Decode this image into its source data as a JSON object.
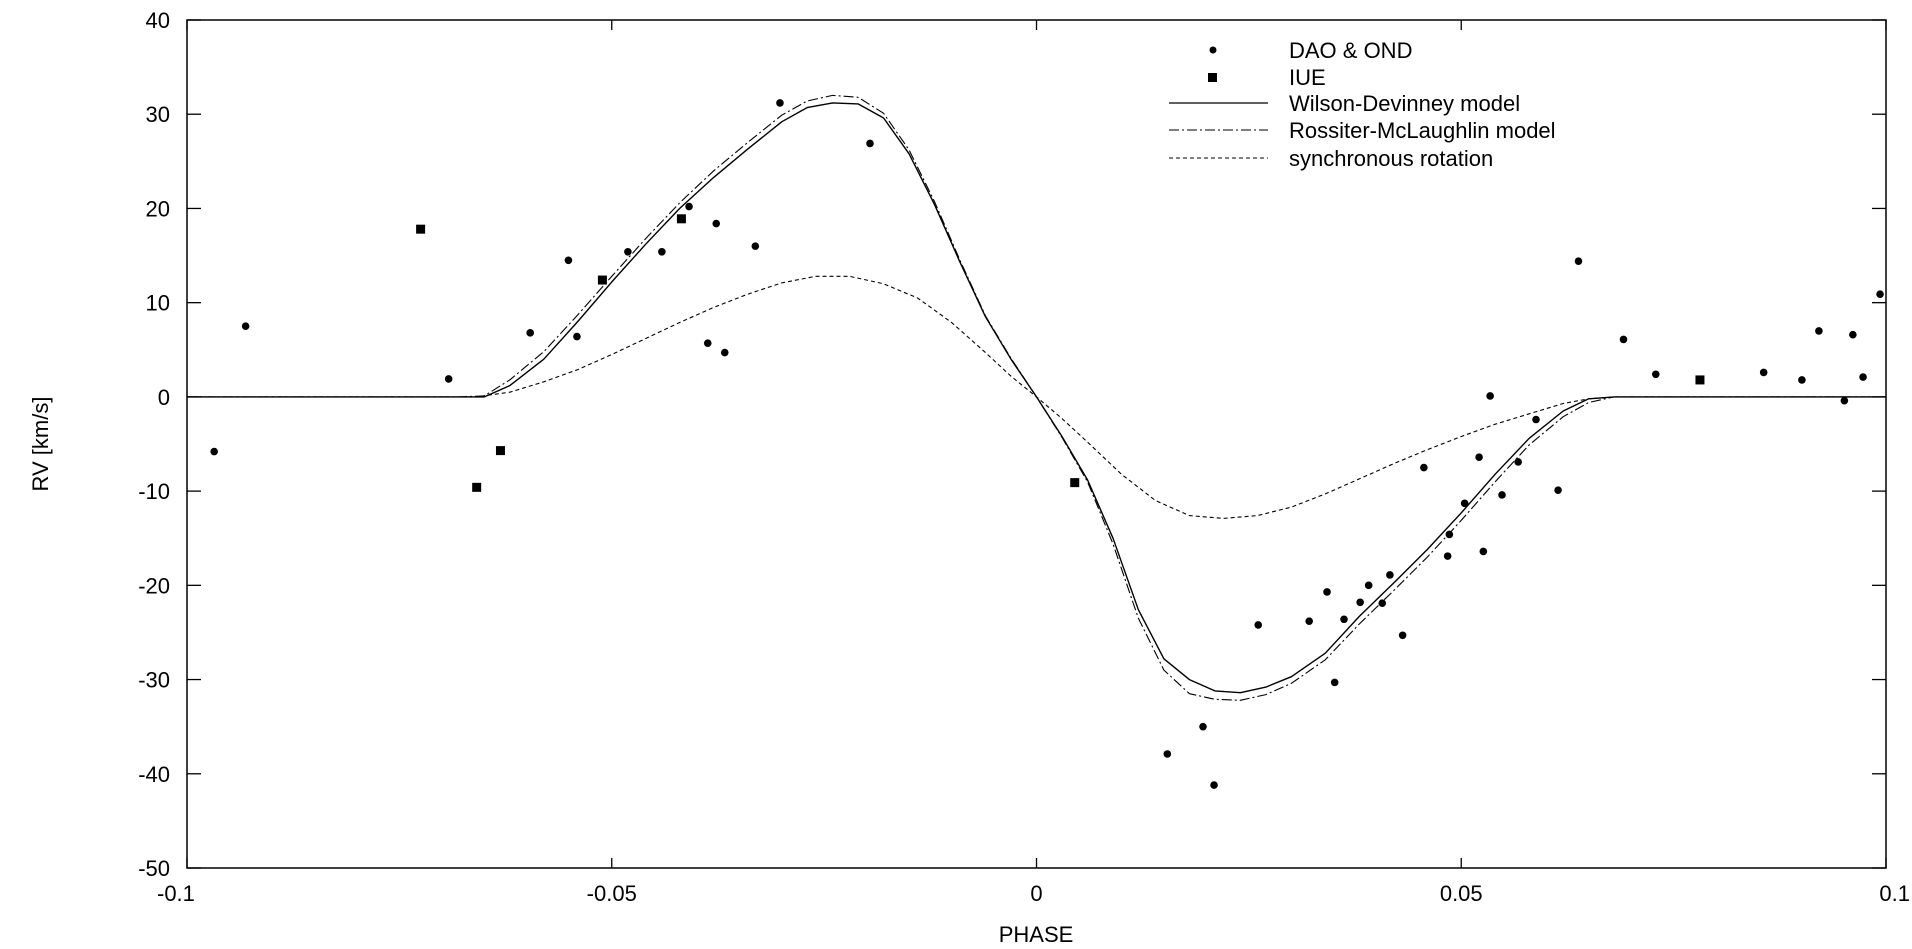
{
  "chart_data": {
    "type": "scatter",
    "title": "",
    "xlabel": "PHASE",
    "ylabel": "RV [km/s]",
    "xlim": [
      -0.1,
      0.1
    ],
    "ylim": [
      -50,
      40
    ],
    "x_ticks": [
      -0.1,
      -0.05,
      0,
      0.05,
      0.1
    ],
    "x_tick_labels": [
      "-0.1",
      "-0.05",
      "0",
      "0.05",
      "0.1"
    ],
    "y_ticks": [
      -50,
      -40,
      -30,
      -20,
      -10,
      0,
      10,
      20,
      30,
      40
    ],
    "y_tick_labels": [
      "-50",
      "-40",
      "-30",
      "-20",
      "-10",
      "0",
      "10",
      "20",
      "30",
      "40"
    ],
    "grid": false,
    "legend_position": "top-right",
    "series": [
      {
        "name": "DAO & OND",
        "kind": "points",
        "marker": "circle",
        "color": "#000000",
        "x": [
          -0.0968,
          -0.0931,
          -0.0692,
          -0.0596,
          -0.0551,
          -0.0541,
          -0.0481,
          -0.0441,
          -0.0409,
          -0.0387,
          -0.0377,
          -0.0367,
          -0.0331,
          -0.0302,
          -0.0196,
          0.0154,
          0.0196,
          0.0209,
          0.0261,
          0.0321,
          0.0342,
          0.0351,
          0.0362,
          0.0381,
          0.0391,
          0.0407,
          0.0416,
          0.0431,
          0.0456,
          0.0484,
          0.0486,
          0.0504,
          0.0521,
          0.0526,
          0.0534,
          0.0548,
          0.0567,
          0.0588,
          0.0614,
          0.0638,
          0.0691,
          0.0729,
          0.0856,
          0.0901,
          0.0921,
          0.0951,
          0.0961,
          0.0973,
          0.0993
        ],
        "y": [
          -5.8,
          7.5,
          1.9,
          6.8,
          14.5,
          6.4,
          15.4,
          15.4,
          20.2,
          5.7,
          18.4,
          4.7,
          16.0,
          31.2,
          26.9,
          -37.9,
          -35.0,
          -41.2,
          -24.2,
          -23.8,
          -20.7,
          -30.3,
          -23.6,
          -21.8,
          -20.0,
          -21.9,
          -18.9,
          -25.3,
          -7.5,
          -16.9,
          -14.6,
          -11.3,
          -6.4,
          -16.4,
          0.1,
          -10.4,
          -6.9,
          -2.4,
          -9.9,
          14.4,
          6.1,
          2.4,
          2.6,
          1.8,
          7.0,
          -0.4,
          6.6,
          2.1,
          10.9
        ]
      },
      {
        "name": "IUE",
        "kind": "points",
        "marker": "square",
        "color": "#000000",
        "x": [
          -0.0725,
          -0.0659,
          -0.0631,
          -0.0511,
          -0.0418,
          0.0045,
          0.0781
        ],
        "y": [
          17.8,
          -9.6,
          -5.7,
          12.4,
          18.9,
          -9.1,
          1.8
        ]
      },
      {
        "name": "Wilson-Devinney model",
        "kind": "line",
        "dash": "solid",
        "color": "#000000",
        "x": [
          -0.1,
          -0.068,
          -0.065,
          -0.062,
          -0.058,
          -0.054,
          -0.05,
          -0.046,
          -0.042,
          -0.038,
          -0.034,
          -0.03,
          -0.027,
          -0.024,
          -0.021,
          -0.018,
          -0.015,
          -0.012,
          -0.009,
          -0.006,
          -0.003,
          0,
          0.003,
          0.006,
          0.009,
          0.012,
          0.015,
          0.018,
          0.021,
          0.024,
          0.027,
          0.03,
          0.034,
          0.038,
          0.042,
          0.046,
          0.05,
          0.054,
          0.058,
          0.062,
          0.065,
          0.068,
          0.1
        ],
        "y": [
          0,
          0,
          0,
          1.2,
          4.0,
          8.0,
          12.2,
          16.2,
          20.0,
          23.3,
          26.3,
          29.2,
          30.7,
          31.2,
          31.1,
          29.6,
          25.8,
          20.4,
          14.3,
          8.5,
          4.0,
          0,
          -4.2,
          -8.8,
          -15.0,
          -22.6,
          -27.8,
          -30.0,
          -31.2,
          -31.4,
          -30.8,
          -29.7,
          -27.2,
          -23.3,
          -19.8,
          -16.2,
          -12.3,
          -8.2,
          -4.4,
          -1.5,
          -0.2,
          0,
          0
        ]
      },
      {
        "name": "Rossiter-McLaughlin model",
        "kind": "line",
        "dash": "dashdot",
        "color": "#000000",
        "x": [
          -0.1,
          -0.068,
          -0.065,
          -0.062,
          -0.058,
          -0.054,
          -0.05,
          -0.046,
          -0.042,
          -0.038,
          -0.034,
          -0.03,
          -0.027,
          -0.024,
          -0.021,
          -0.018,
          -0.015,
          -0.012,
          -0.009,
          -0.006,
          -0.003,
          0,
          0.003,
          0.006,
          0.009,
          0.012,
          0.015,
          0.018,
          0.021,
          0.024,
          0.027,
          0.03,
          0.034,
          0.038,
          0.042,
          0.046,
          0.05,
          0.054,
          0.058,
          0.062,
          0.065,
          0.068,
          0.1
        ],
        "y": [
          0,
          0,
          0.1,
          1.8,
          4.8,
          8.7,
          12.8,
          16.8,
          20.6,
          24.0,
          27.0,
          29.9,
          31.4,
          32.0,
          31.8,
          30.1,
          26.2,
          20.7,
          14.5,
          8.6,
          4.1,
          0,
          -4.3,
          -9.0,
          -15.6,
          -23.5,
          -29.0,
          -31.5,
          -32.1,
          -32.2,
          -31.6,
          -30.4,
          -27.9,
          -24.1,
          -20.6,
          -17.0,
          -13.1,
          -9.0,
          -5.1,
          -2.1,
          -0.6,
          0,
          0
        ]
      },
      {
        "name": "synchronous rotation",
        "kind": "line",
        "dash": "dashed",
        "color": "#000000",
        "x": [
          -0.1,
          -0.068,
          -0.066,
          -0.062,
          -0.058,
          -0.054,
          -0.05,
          -0.046,
          -0.042,
          -0.038,
          -0.034,
          -0.03,
          -0.026,
          -0.022,
          -0.018,
          -0.014,
          -0.01,
          -0.006,
          -0.003,
          0,
          0.003,
          0.006,
          0.01,
          0.014,
          0.018,
          0.022,
          0.026,
          0.03,
          0.034,
          0.038,
          0.042,
          0.046,
          0.05,
          0.054,
          0.058,
          0.062,
          0.065,
          0.068,
          0.1
        ],
        "y": [
          0,
          0,
          0,
          0.5,
          1.6,
          2.9,
          4.5,
          6.2,
          7.9,
          9.5,
          10.9,
          12.1,
          12.8,
          12.8,
          12.0,
          10.5,
          7.9,
          4.7,
          2.2,
          0,
          -2.3,
          -4.8,
          -8.2,
          -11.0,
          -12.6,
          -12.9,
          -12.6,
          -11.7,
          -10.3,
          -8.7,
          -7.1,
          -5.6,
          -4.2,
          -2.9,
          -1.8,
          -0.7,
          -0.2,
          0,
          0
        ]
      }
    ]
  }
}
